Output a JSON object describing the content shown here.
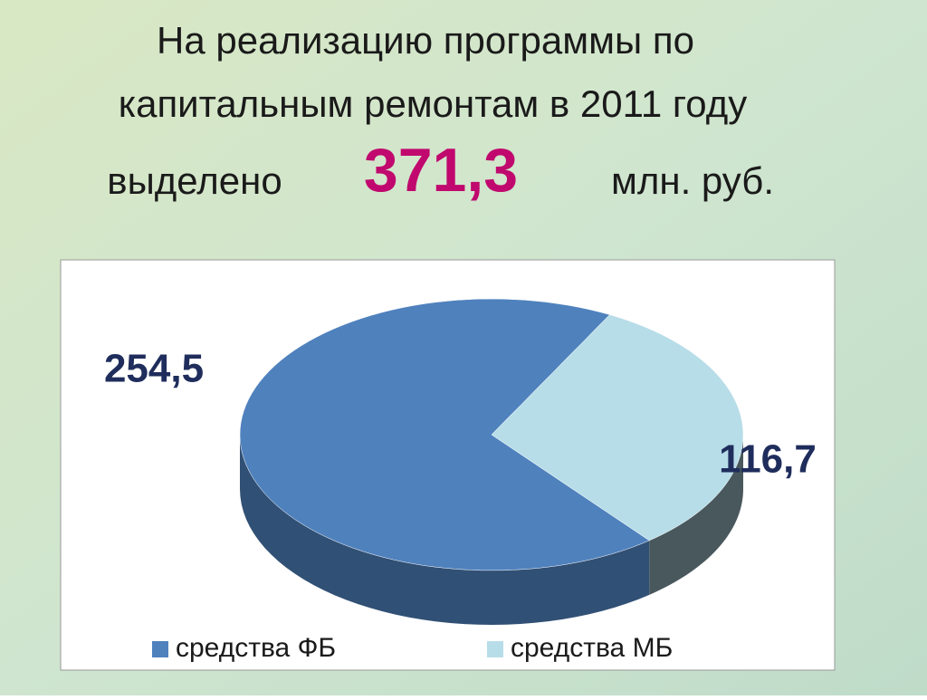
{
  "chart_data": {
    "type": "pie3d",
    "title": [
      "На реализацию программы по",
      "капитальным ремонтам в 2011 году",
      "выделено"
    ],
    "total": 371.3,
    "total_label": "371,3",
    "unit": "млн. руб.",
    "categories": [
      "средства ФБ",
      "средства МБ"
    ],
    "values": [
      254.5,
      116.7
    ],
    "value_labels": [
      "254,5",
      "116,7"
    ],
    "colors": [
      "#4f81bd",
      "#b7dde8"
    ],
    "legend": "bottom"
  }
}
